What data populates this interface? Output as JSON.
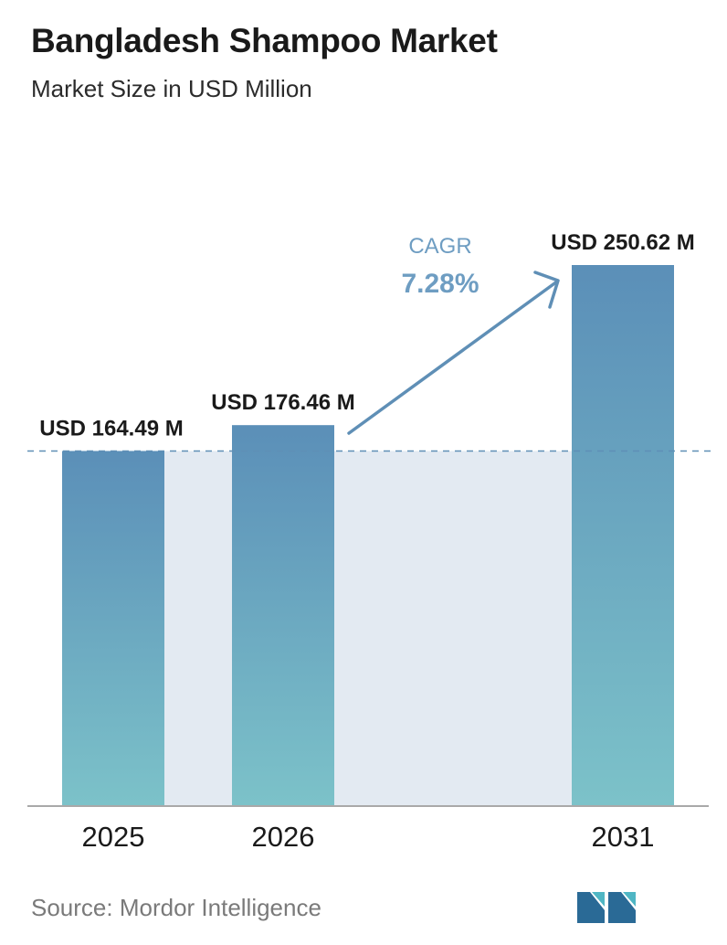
{
  "title": "Bangladesh Shampoo Market",
  "subtitle": "Market Size in USD Million",
  "source": "Source:  Mordor Intelligence",
  "logo_name": "mordor-intelligence-logo",
  "colors": {
    "bar_top": "#5b8fb8",
    "bar_bottom": "#7cc2c9",
    "band": "#e3eaf2",
    "arrow": "#5f8fb6",
    "cagr_text": "#6e9dc2",
    "baseline": "#a9a9a9",
    "dashed": "#5f8fb6",
    "logo_dark": "#2a6a96",
    "logo_light": "#4fb6c4"
  },
  "chart_data": {
    "type": "bar",
    "categories": [
      "2025",
      "2026",
      "2031"
    ],
    "values": [
      164.49,
      176.46,
      250.62
    ],
    "value_labels": [
      "USD 164.49 M",
      "USD 176.46 M",
      "USD 250.62 M"
    ],
    "annotation": {
      "label": "CAGR",
      "value": "7.28%"
    },
    "ylim": [
      0,
      250.62
    ],
    "grid": false
  }
}
